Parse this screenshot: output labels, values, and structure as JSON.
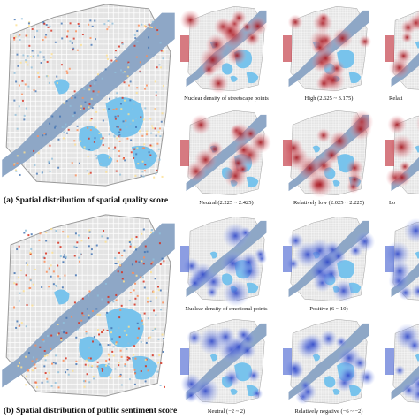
{
  "panel_a": {
    "caption": "(a) Spatial distribution of spatial quality score"
  },
  "panel_b": {
    "caption": "(b) Spatial distribution of public sentiment score"
  },
  "small_maps": [
    {
      "caption": "Nuclear density of streetscape points"
    },
    {
      "caption": "High (2.625 ~ 3.175)"
    },
    {
      "caption": "Relati"
    },
    {
      "caption": "Neutral (2.225 ~ 2.425)"
    },
    {
      "caption": "Relatively low (2.025 ~ 2.225)"
    },
    {
      "caption": "Lo"
    },
    {
      "caption": "Nuclear density of emotional points"
    },
    {
      "caption": "Positive (6 ~ 10)"
    },
    {
      "caption": "Neutral (−2 ~ 2)"
    },
    {
      "caption": "Relatively negative (−6 ~ −2)"
    }
  ]
}
